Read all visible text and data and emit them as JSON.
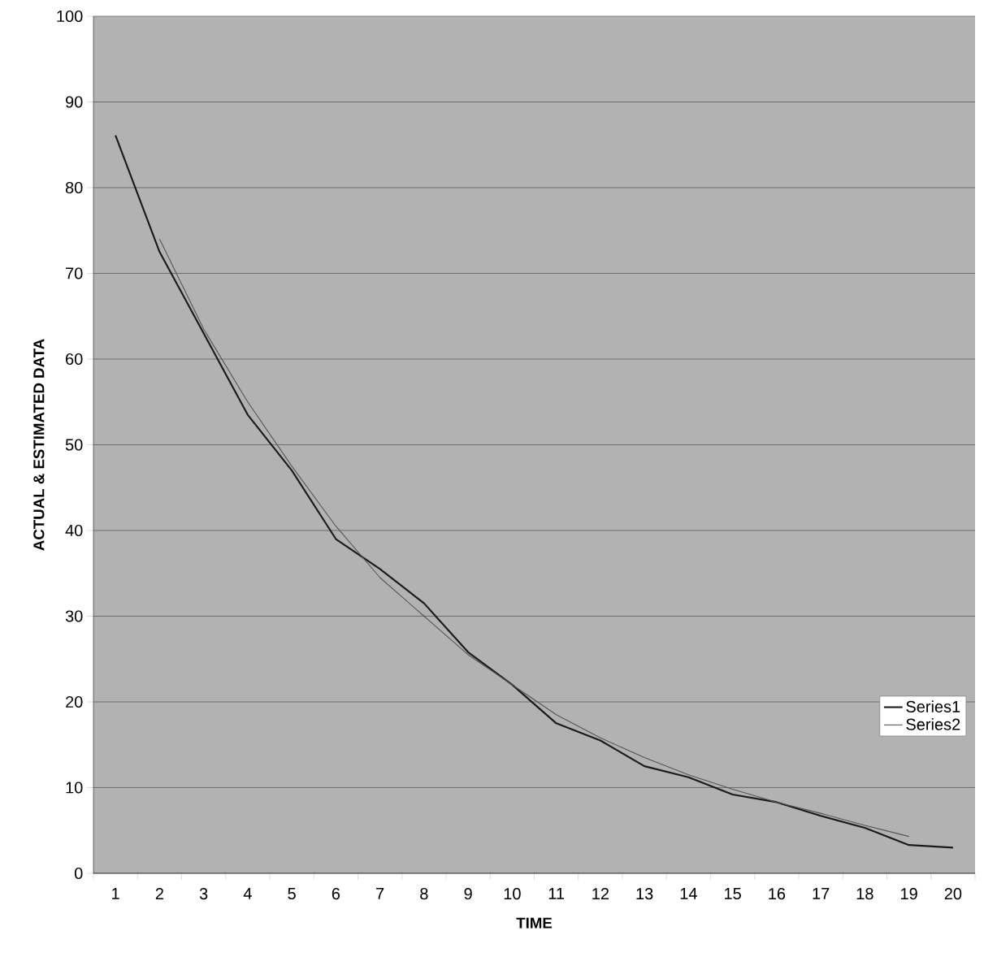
{
  "chart_data": {
    "type": "line",
    "xlabel": "TIME",
    "ylabel": "ACTUAL & ESTIMATED DATA",
    "categories": [
      "1",
      "2",
      "3",
      "4",
      "5",
      "6",
      "7",
      "8",
      "9",
      "10",
      "11",
      "12",
      "13",
      "14",
      "15",
      "16",
      "17",
      "18",
      "19",
      "20"
    ],
    "series": [
      {
        "name": "Series1",
        "color": "#1a1a1a",
        "values": [
          86.1,
          72.5,
          63,
          53.5,
          47,
          39,
          35.5,
          31.5,
          25.8,
          22,
          17.5,
          15.5,
          12.5,
          11.2,
          9.2,
          8.3,
          6.7,
          5.3,
          3.3,
          3.0
        ]
      },
      {
        "name": "Series2",
        "color": "#555555",
        "values": [
          null,
          74,
          63.5,
          55,
          47.5,
          40.5,
          34.5,
          30,
          25.5,
          22,
          18.5,
          15.8,
          13.5,
          11.5,
          9.8,
          8.3,
          7,
          5.6,
          4.3,
          null
        ]
      }
    ],
    "ylim": [
      0,
      100
    ],
    "yticks": [
      0,
      10,
      20,
      30,
      40,
      50,
      60,
      70,
      80,
      90,
      100
    ],
    "grid": "y",
    "legend": "right",
    "line_style": "solid",
    "marker": "none"
  }
}
